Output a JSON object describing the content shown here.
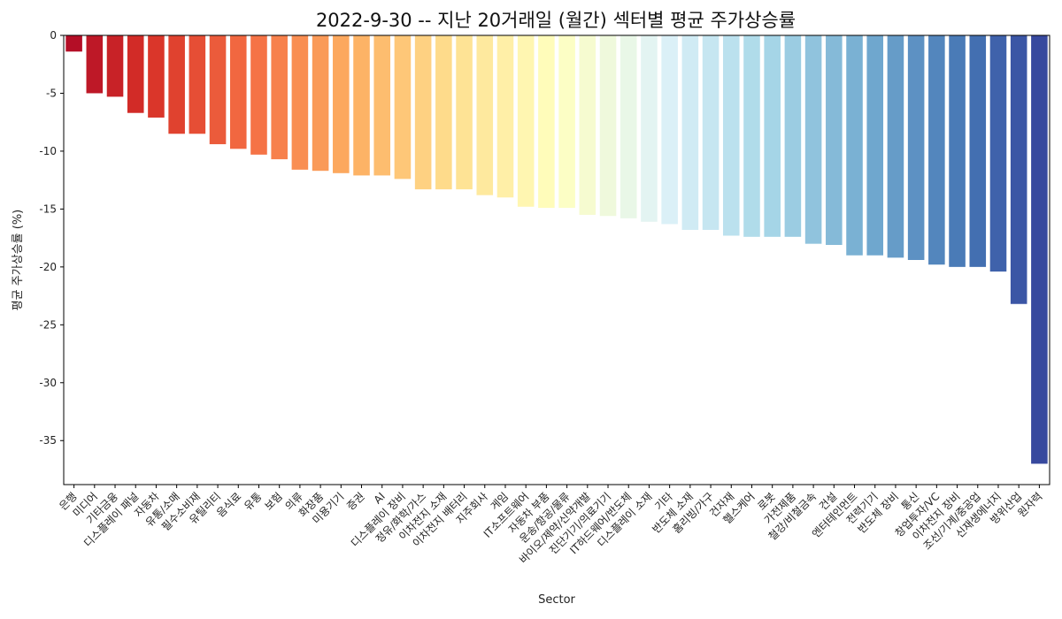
{
  "chart_data": {
    "type": "bar",
    "title": "2022-9-30 -- 지난 20거래일 (월간) 섹터별 평균 주가상승률",
    "xlabel": "Sector",
    "ylabel": "평균 주가상승률 (%)",
    "ylim": [
      -38.8,
      0
    ],
    "yticks": [
      0,
      -5,
      -10,
      -15,
      -20,
      -25,
      -30,
      -35
    ],
    "grid": false,
    "legend": "none",
    "colormap": "RdYlBu",
    "categories": [
      "은행",
      "미디어",
      "기타금융",
      "디스플레이 패널",
      "자동차",
      "유통/소매",
      "필수소비재",
      "유틸리티",
      "음식료",
      "유통",
      "보험",
      "의류",
      "화장품",
      "미용기기",
      "증권",
      "AI",
      "디스플레이 장비",
      "정유/화학/가스",
      "이차전지 소재",
      "이차전지 배터리",
      "지주회사",
      "게임",
      "IT소프트웨어",
      "자동차 부품",
      "운송/항공/물류",
      "바이오/제약/신약개발",
      "진단기기/의료기기",
      "IT하드웨어/반도체",
      "디스플레이 소재",
      "기타",
      "반도체 소재",
      "홈리빙/가구",
      "건자재",
      "헬스케어",
      "로봇",
      "가전제품",
      "철강/비철금속",
      "건설",
      "엔터테인먼트",
      "전력기기",
      "반도체 장비",
      "통신",
      "창업투자/VC",
      "이차전지 장비",
      "조선/기계/중공업",
      "신재생에너지",
      "방위산업",
      "원자력"
    ],
    "values": [
      -1.4,
      -5.0,
      -5.3,
      -6.7,
      -7.1,
      -8.5,
      -8.5,
      -9.4,
      -9.8,
      -10.3,
      -10.7,
      -11.6,
      -11.7,
      -11.9,
      -12.1,
      -12.1,
      -12.4,
      -13.3,
      -13.3,
      -13.3,
      -13.8,
      -14.0,
      -14.8,
      -14.9,
      -14.9,
      -15.5,
      -15.6,
      -15.8,
      -16.1,
      -16.3,
      -16.8,
      -16.8,
      -17.3,
      -17.4,
      -17.4,
      -17.4,
      -18.0,
      -18.1,
      -19.0,
      -19.0,
      -19.2,
      -19.4,
      -19.8,
      -20.0,
      -20.0,
      -20.4,
      -23.2,
      -37.0
    ]
  }
}
